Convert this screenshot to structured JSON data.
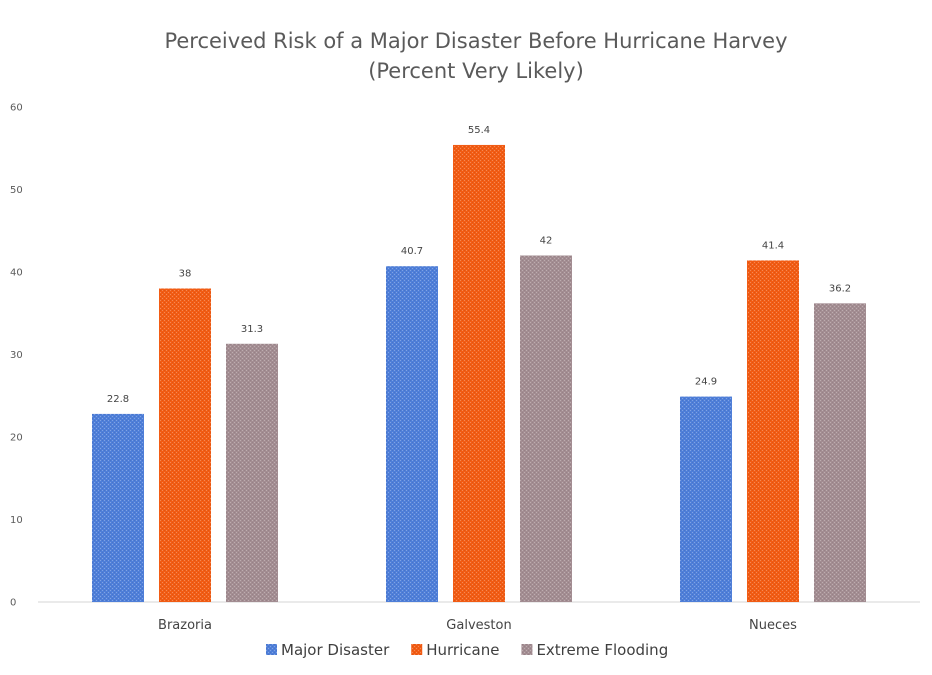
{
  "chart_data": {
    "type": "bar",
    "title": "Perceived Risk of a Major Disaster Before Hurricane Harvey",
    "subtitle": "(Percent Very Likely)",
    "xlabel": "",
    "ylabel": "",
    "categories": [
      "Brazoria",
      "Galveston",
      "Nueces"
    ],
    "series": [
      {
        "name": "Major Disaster",
        "values": [
          22.8,
          40.7,
          24.9
        ],
        "color": "#4f7fd9"
      },
      {
        "name": "Hurricane",
        "values": [
          38,
          55.4,
          41.4
        ],
        "color": "#f25c14"
      },
      {
        "name": "Extreme Flooding",
        "values": [
          31.3,
          42,
          36.2
        ],
        "color": "#a38d92"
      }
    ],
    "ylim": [
      0,
      60
    ],
    "yticks": [
      0,
      10,
      20,
      30,
      40,
      50,
      60
    ],
    "grid": false,
    "legend_position": "bottom"
  }
}
